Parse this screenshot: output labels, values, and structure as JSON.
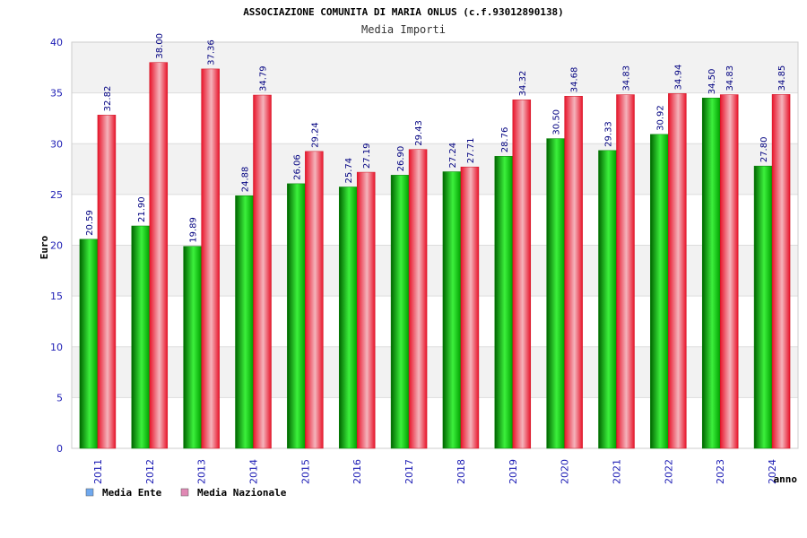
{
  "chart_data": {
    "type": "bar",
    "title": "ASSOCIAZIONE COMUNITA DI MARIA ONLUS (c.f.93012890138)",
    "subtitle": "Media Importi",
    "xlabel": "anno",
    "ylabel": "Euro",
    "ylim": [
      0,
      40
    ],
    "yticks": [
      0,
      5,
      10,
      15,
      20,
      25,
      30,
      35,
      40
    ],
    "grid": true,
    "legend_position": "bottom-left",
    "categories": [
      "2011",
      "2012",
      "2013",
      "2014",
      "2015",
      "2016",
      "2017",
      "2018",
      "2019",
      "2020",
      "2021",
      "2022",
      "2023",
      "2024"
    ],
    "series": [
      {
        "name": "Media Ente",
        "values": [
          20.59,
          21.9,
          19.89,
          24.88,
          26.06,
          25.74,
          26.9,
          27.24,
          28.76,
          30.5,
          29.33,
          30.92,
          34.5,
          27.8
        ],
        "labels": [
          "20.59",
          "21.90",
          "19.89",
          "24.88",
          "26.06",
          "25.74",
          "26.90",
          "27.24",
          "28.76",
          "30.50",
          "29.33",
          "30.92",
          "34.50",
          "27.80"
        ],
        "color": "#00b400",
        "legend_color": "#6fa8ee"
      },
      {
        "name": "Media Nazionale",
        "values": [
          32.82,
          38.0,
          37.36,
          34.79,
          29.24,
          27.19,
          29.43,
          27.71,
          34.32,
          34.68,
          34.83,
          34.94,
          34.83,
          34.85
        ],
        "labels": [
          "32.82",
          "38.00",
          "37.36",
          "34.79",
          "29.24",
          "27.19",
          "29.43",
          "27.71",
          "34.32",
          "34.68",
          "34.83",
          "34.94",
          "34.83",
          "34.85"
        ],
        "color": "#e8142a",
        "legend_color": "#e088b4"
      }
    ]
  }
}
